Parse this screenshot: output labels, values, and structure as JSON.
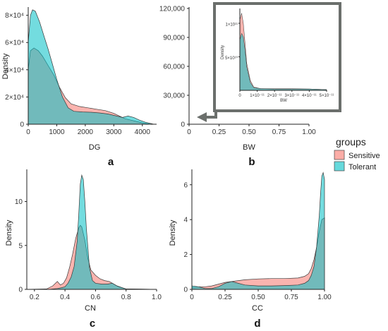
{
  "colors": {
    "sensitive": "#F8766D",
    "tolerant": "#00BFC4",
    "inset_frame": "#6b6f6c"
  },
  "legend": {
    "title": "groups",
    "items": [
      {
        "label": "Sensitive",
        "color": "#F8766D"
      },
      {
        "label": "Tolerant",
        "color": "#00BFC4"
      }
    ]
  },
  "chart_data": [
    {
      "panel": "a",
      "type": "area",
      "xlabel": "DG",
      "ylabel": "Density",
      "xlim": [
        0,
        4500
      ],
      "ylim": [
        0,
        85000
      ],
      "xticks": [
        0,
        1000,
        2000,
        3000,
        4000
      ],
      "xtick_labels": [
        "0",
        "1000",
        "2000",
        "3000",
        "4000"
      ],
      "yticks": [
        0,
        20000,
        40000,
        60000,
        80000
      ],
      "ytick_labels": [
        "0",
        "2×10⁴",
        "4×10⁴",
        "6×10⁴",
        "8×10⁴"
      ],
      "series": [
        {
          "name": "Sensitive",
          "x": [
            0,
            80,
            200,
            350,
            500,
            700,
            900,
            1100,
            1300,
            1500,
            1800,
            2100,
            2400,
            2700,
            3000,
            3200,
            3400,
            3600,
            3800,
            4000,
            4300
          ],
          "y": [
            40000,
            54000,
            56000,
            54000,
            50000,
            43000,
            36000,
            27000,
            19500,
            15000,
            13000,
            12000,
            11000,
            10000,
            8000,
            6000,
            4000,
            3000,
            2000,
            1000,
            0
          ]
        },
        {
          "name": "Tolerant",
          "x": [
            0,
            80,
            150,
            250,
            400,
            550,
            700,
            850,
            1000,
            1200,
            1400,
            1600,
            1900,
            2200,
            2500,
            2800,
            3100,
            3300,
            3500,
            3700,
            3900,
            4100,
            4400
          ],
          "y": [
            60000,
            80000,
            84000,
            83000,
            75000,
            65000,
            55000,
            44000,
            33000,
            20000,
            12000,
            9500,
            9000,
            8800,
            8300,
            7500,
            6000,
            5000,
            6000,
            5000,
            3000,
            1500,
            0
          ]
        }
      ]
    },
    {
      "panel": "b",
      "type": "area",
      "xlabel": "BW",
      "ylabel": "",
      "xlim": [
        0,
        1
      ],
      "ylim": [
        0,
        120000
      ],
      "xticks": [
        0,
        0.25,
        0.5,
        0.75,
        1.0
      ],
      "xtick_labels": [
        "0",
        "0.25",
        "0.50",
        "0.75",
        "1.00"
      ],
      "yticks": [
        0,
        30000,
        60000,
        90000,
        120000
      ],
      "ytick_labels": [
        "0",
        "30,000",
        "60,000",
        "90,000",
        "120,000"
      ],
      "inset": {
        "xlabel": "BW",
        "ylabel": "Density",
        "xlim": [
          0,
          5e-11
        ],
        "ylim": [
          0,
          120000000000.0
        ],
        "xticks": [
          0,
          1e-11,
          2e-11,
          3e-11,
          4e-11,
          5e-11
        ],
        "xtick_labels": [
          "0",
          "1×10⁻¹¹",
          "2×10⁻¹¹",
          "3×10⁻¹¹",
          "4×10⁻¹¹",
          "5×10⁻¹¹"
        ],
        "yticks": [
          50000000000.0,
          100000000000.0
        ],
        "ytick_labels": [
          "5×10¹⁰",
          "1×10¹¹"
        ],
        "series": [
          {
            "name": "Sensitive",
            "x": [
              0,
              1e-12,
              2e-12,
              3e-12,
              4e-12,
              6e-12,
              8e-12,
              1.2e-11,
              2e-11,
              3e-11,
              4e-11,
              5e-11
            ],
            "y": [
              105000000000.0,
              115000000000.0,
              100000000000.0,
              70000000000.0,
              40000000000.0,
              15000000000.0,
              5000000000.0,
              2500000000.0,
              2500000000.0,
              2500000000.0,
              2000000000.0,
              1000000000.0
            ]
          },
          {
            "name": "Tolerant",
            "x": [
              0,
              1e-12,
              2e-12,
              3e-12,
              4e-12,
              6e-12,
              8e-12,
              1.2e-11,
              2e-11,
              3e-11,
              4e-11,
              5e-11
            ],
            "y": [
              75000000000.0,
              85000000000.0,
              80000000000.0,
              60000000000.0,
              35000000000.0,
              12000000000.0,
              4000000000.0,
              2500000000.0,
              2000000000.0,
              2000000000.0,
              2000000000.0,
              1000000000.0
            ]
          }
        ]
      }
    },
    {
      "panel": "c",
      "type": "area",
      "xlabel": "CN",
      "ylabel": "Density",
      "xlim": [
        0.15,
        1.0
      ],
      "ylim": [
        0,
        13.5
      ],
      "xticks": [
        0.2,
        0.4,
        0.6,
        0.8,
        1.0
      ],
      "xtick_labels": [
        "0.2",
        "0.4",
        "0.6",
        "0.8",
        "1.0"
      ],
      "yticks": [
        0,
        5,
        10
      ],
      "ytick_labels": [
        "0",
        "5",
        "10"
      ],
      "series": [
        {
          "name": "Sensitive",
          "x": [
            0.15,
            0.28,
            0.32,
            0.35,
            0.37,
            0.39,
            0.41,
            0.43,
            0.45,
            0.47,
            0.49,
            0.5,
            0.51,
            0.53,
            0.55,
            0.57,
            0.6,
            0.63,
            0.66,
            0.69,
            0.72,
            0.75,
            0.8,
            1.0
          ],
          "y": [
            0,
            0.05,
            0.4,
            0.9,
            0.5,
            0.7,
            1.3,
            2.5,
            4.0,
            5.8,
            7.0,
            7.3,
            7.1,
            5.6,
            3.5,
            2.2,
            1.6,
            1.2,
            1.0,
            0.9,
            0.6,
            0.3,
            0.05,
            0
          ]
        },
        {
          "name": "Tolerant",
          "x": [
            0.15,
            0.3,
            0.35,
            0.38,
            0.4,
            0.42,
            0.44,
            0.46,
            0.48,
            0.49,
            0.5,
            0.51,
            0.52,
            0.53,
            0.54,
            0.56,
            0.58,
            0.6,
            0.64,
            0.68,
            0.71,
            0.74,
            0.8,
            1.0
          ],
          "y": [
            0,
            0.02,
            0.1,
            0.2,
            0.3,
            0.7,
            1.4,
            2.6,
            5.5,
            8.5,
            12.0,
            13.0,
            12.5,
            10.0,
            7.0,
            2.5,
            1.0,
            0.7,
            0.6,
            0.6,
            0.7,
            0.4,
            0.05,
            0
          ]
        }
      ]
    },
    {
      "panel": "d",
      "type": "area",
      "xlabel": "CC",
      "ylabel": "Density",
      "xlim": [
        0,
        1.0
      ],
      "ylim": [
        0,
        6.8
      ],
      "xticks": [
        0,
        0.25,
        0.5,
        0.75,
        1.0
      ],
      "xtick_labels": [
        "0",
        "0.25",
        "0.50",
        "0.75",
        "1.00"
      ],
      "yticks": [
        0,
        2,
        4,
        6
      ],
      "ytick_labels": [
        "0",
        "2",
        "4",
        "6"
      ],
      "series": [
        {
          "name": "Sensitive",
          "x": [
            0,
            0.05,
            0.1,
            0.15,
            0.2,
            0.25,
            0.3,
            0.35,
            0.4,
            0.5,
            0.6,
            0.7,
            0.8,
            0.85,
            0.88,
            0.9,
            0.92,
            0.94,
            0.96,
            0.98,
            1.0
          ],
          "y": [
            0.1,
            0.15,
            0.15,
            0.2,
            0.3,
            0.4,
            0.45,
            0.5,
            0.55,
            0.6,
            0.62,
            0.62,
            0.65,
            0.75,
            0.9,
            1.2,
            1.7,
            2.4,
            3.3,
            4.0,
            4.1
          ]
        },
        {
          "name": "Tolerant",
          "x": [
            0,
            0.05,
            0.1,
            0.15,
            0.2,
            0.25,
            0.3,
            0.35,
            0.4,
            0.5,
            0.6,
            0.7,
            0.8,
            0.85,
            0.88,
            0.9,
            0.92,
            0.94,
            0.96,
            0.97,
            0.98,
            0.99,
            1.0
          ],
          "y": [
            0.2,
            0.15,
            0.05,
            0.05,
            0.15,
            0.35,
            0.45,
            0.35,
            0.25,
            0.2,
            0.2,
            0.22,
            0.25,
            0.35,
            0.5,
            0.8,
            1.3,
            2.4,
            4.2,
            5.5,
            6.5,
            6.7,
            6.3
          ]
        }
      ]
    }
  ]
}
